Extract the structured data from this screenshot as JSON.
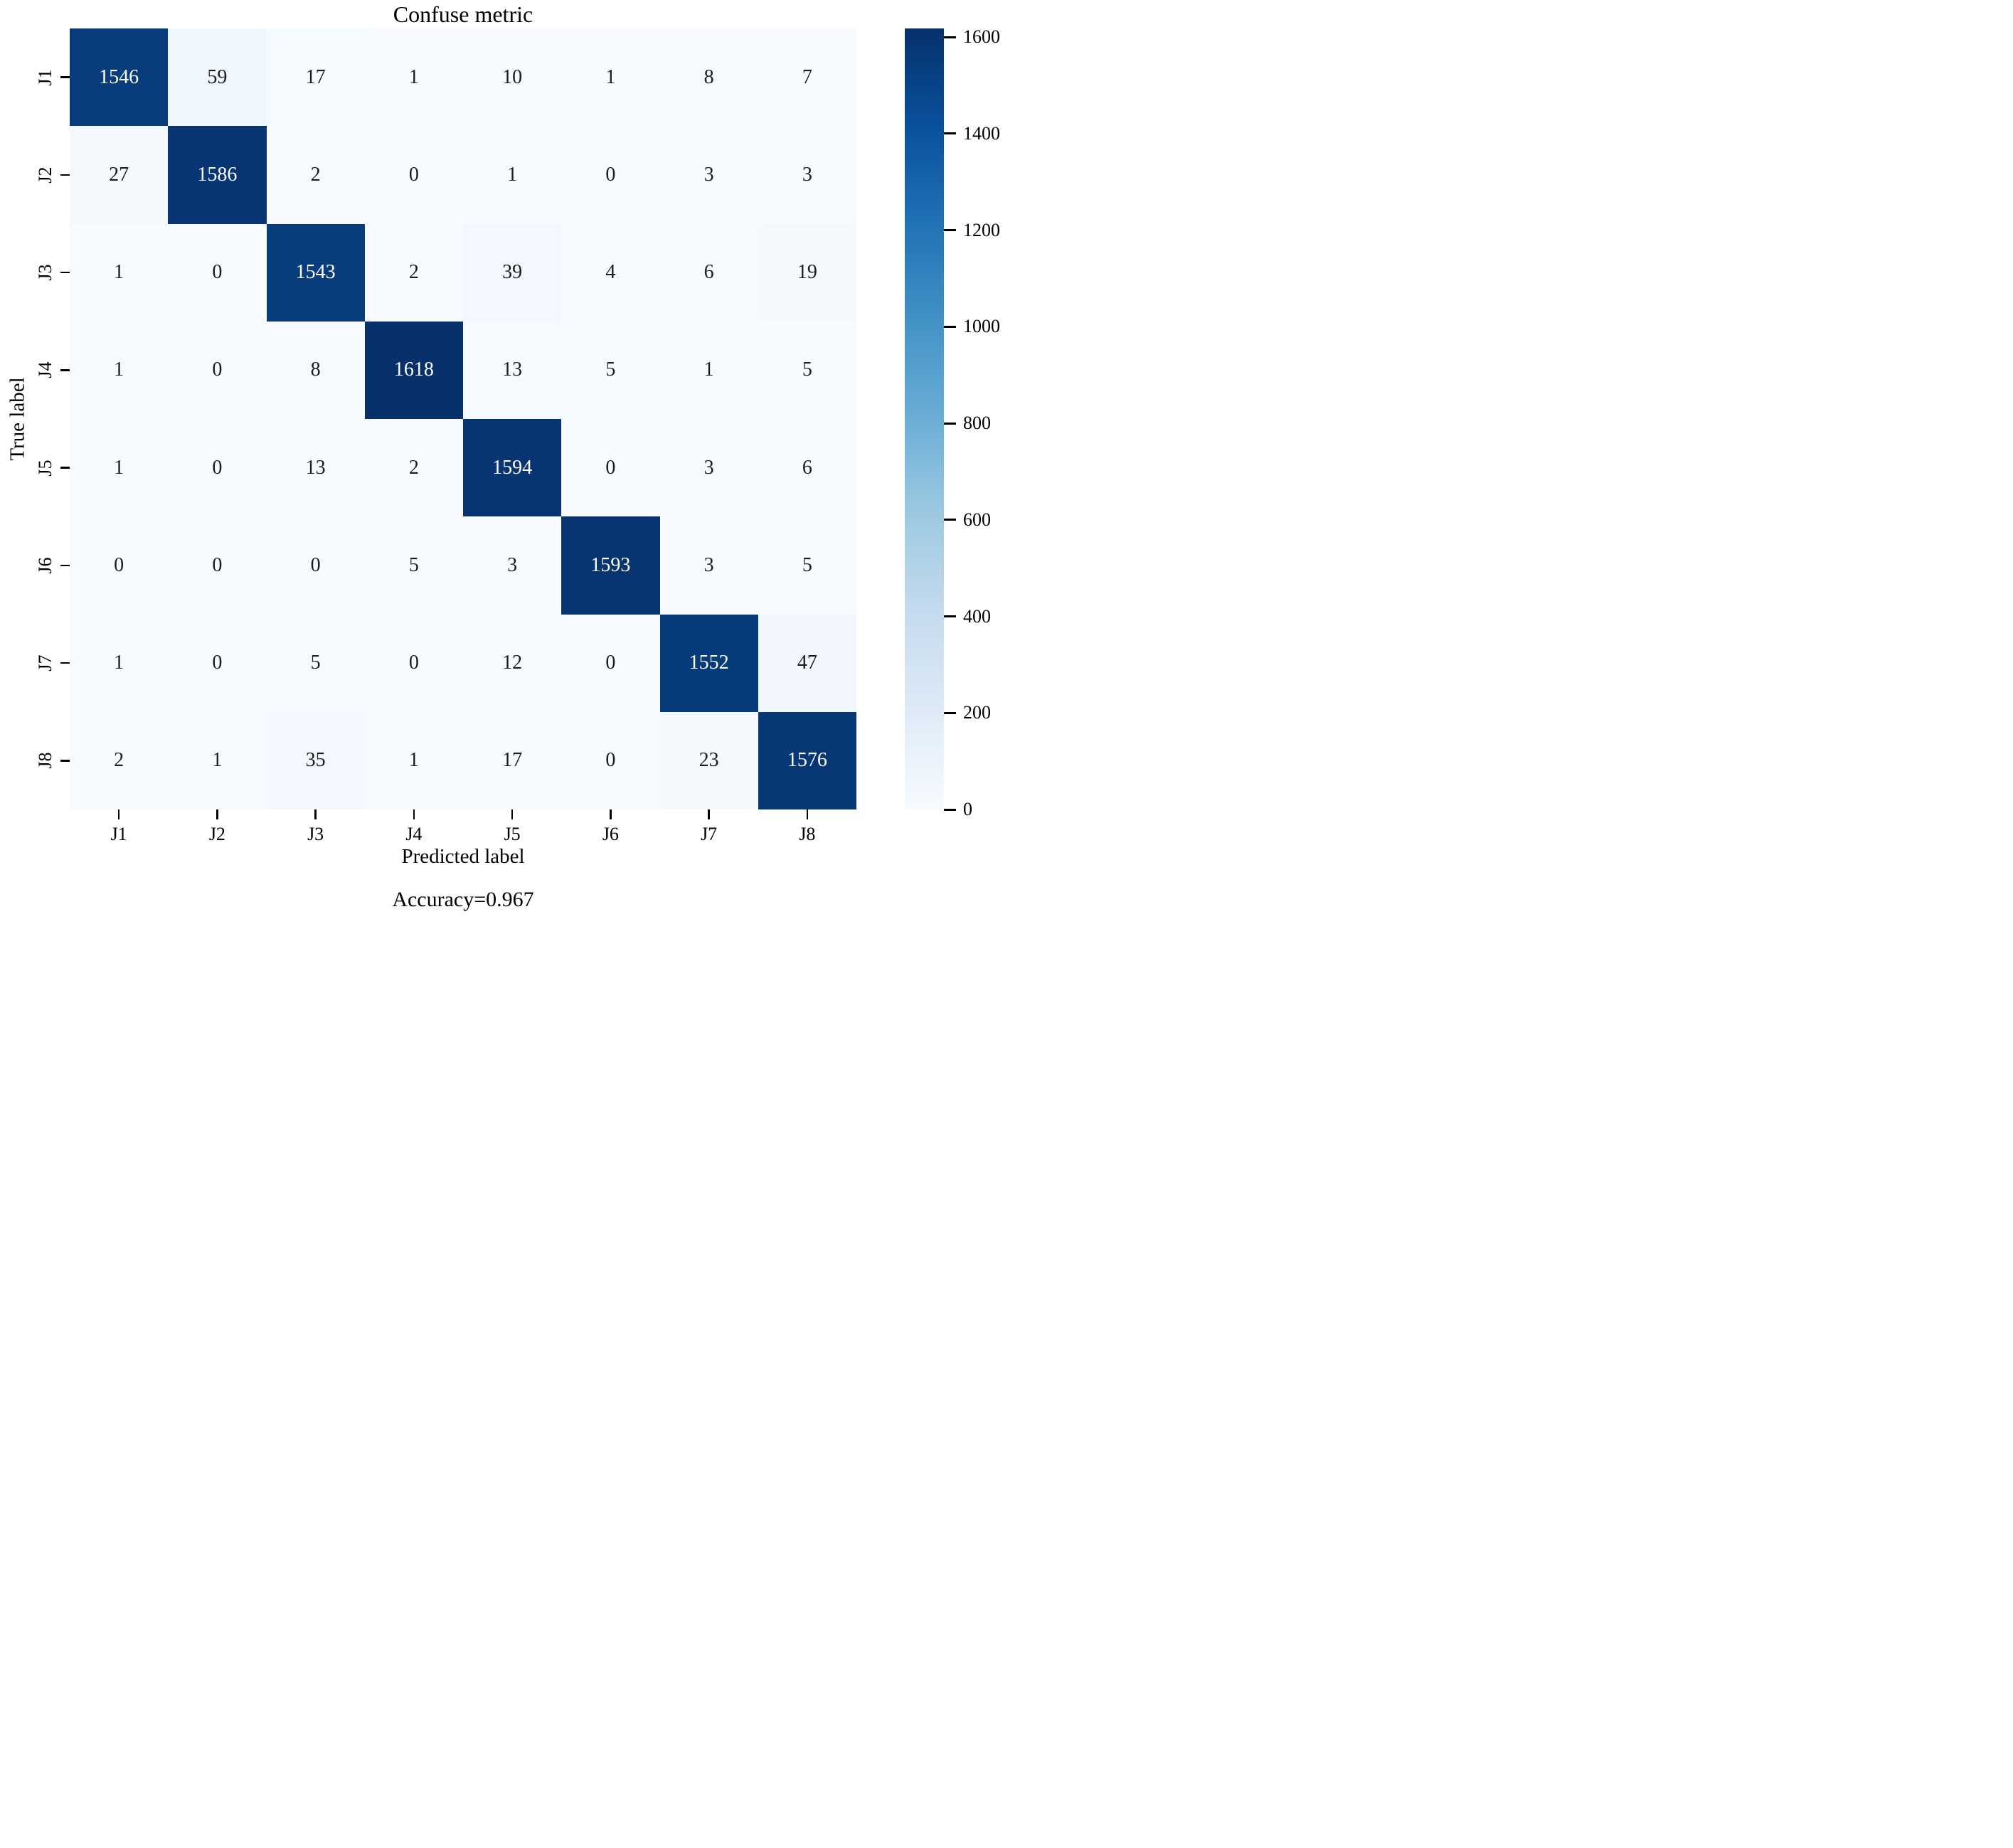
{
  "chart_data": {
    "type": "heatmap",
    "title": "Confuse metric",
    "xlabel": "Predicted label",
    "ylabel": "True label",
    "annotation": "Accuracy=0.967",
    "x_tick_labels": [
      "J1",
      "J2",
      "J3",
      "J4",
      "J5",
      "J6",
      "J7",
      "J8"
    ],
    "y_tick_labels": [
      "J1",
      "J2",
      "J3",
      "J4",
      "J5",
      "J6",
      "J7",
      "J8"
    ],
    "matrix": [
      [
        1546,
        59,
        17,
        1,
        10,
        1,
        8,
        7
      ],
      [
        27,
        1586,
        2,
        0,
        1,
        0,
        3,
        3
      ],
      [
        1,
        0,
        1543,
        2,
        39,
        4,
        6,
        19
      ],
      [
        1,
        0,
        8,
        1618,
        13,
        5,
        1,
        5
      ],
      [
        1,
        0,
        13,
        2,
        1594,
        0,
        3,
        6
      ],
      [
        0,
        0,
        0,
        5,
        3,
        1593,
        3,
        5
      ],
      [
        1,
        0,
        5,
        0,
        12,
        0,
        1552,
        47
      ],
      [
        2,
        1,
        35,
        1,
        17,
        0,
        23,
        1576
      ]
    ],
    "vmin": 0,
    "vmax": 1618,
    "colorbar_ticks": [
      0,
      200,
      400,
      600,
      800,
      1000,
      1200,
      1400,
      1600
    ],
    "colormap": "Blues",
    "legend_position": "right-colorbar",
    "grid": false
  },
  "colors": {
    "colormap_anchors": [
      "#f7fbff",
      "#deebf7",
      "#c6dbef",
      "#9ecae1",
      "#6baed6",
      "#4292c6",
      "#2171b5",
      "#08519c",
      "#08306b"
    ],
    "cell_text_dark": "#1c1c1c",
    "cell_text_light": "#ffffff",
    "axis": "#000000",
    "background": "#ffffff"
  }
}
